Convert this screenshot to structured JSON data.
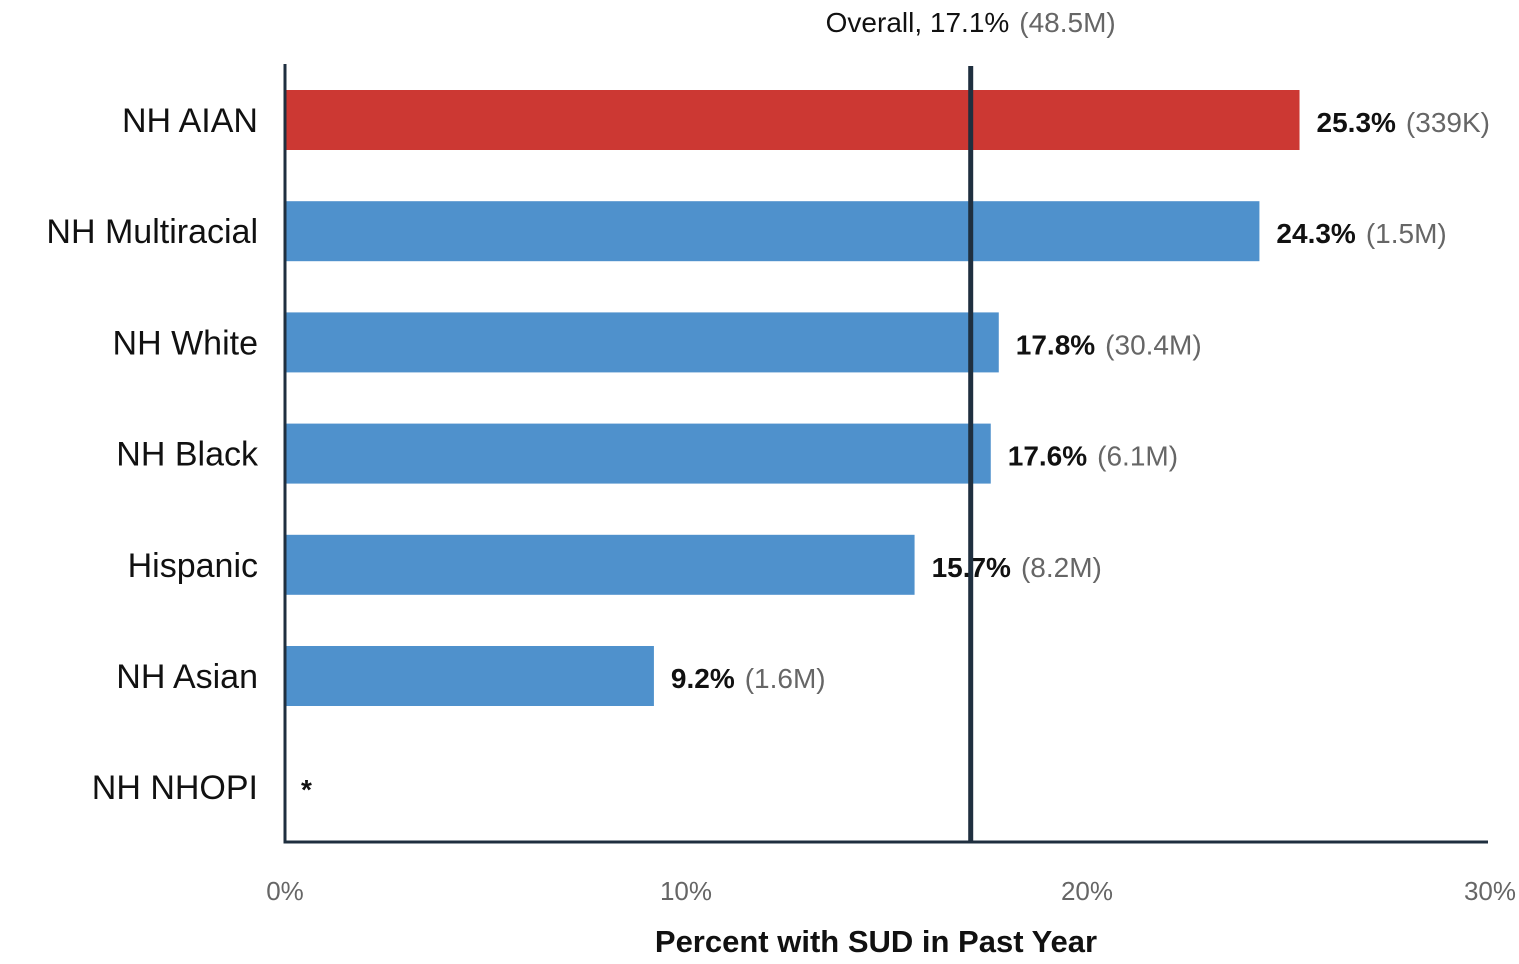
{
  "chart_data": {
    "type": "bar",
    "orientation": "horizontal",
    "categories": [
      "NH AIAN",
      "NH Multiracial",
      "NH White",
      "NH Black",
      "Hispanic",
      "NH Asian",
      "NH NHOPI"
    ],
    "values": [
      25.3,
      24.3,
      17.8,
      17.6,
      15.7,
      9.2,
      null
    ],
    "value_labels": [
      "25.3%",
      "24.3%",
      "17.8%",
      "17.6%",
      "15.7%",
      "9.2%",
      "*"
    ],
    "count_labels": [
      "(339K)",
      "(1.5M)",
      "(30.4M)",
      "(6.1M)",
      "(8.2M)",
      "(1.6M)",
      ""
    ],
    "highlight_index": 0,
    "xlabel": "Percent with SUD in Past Year",
    "ylabel": "",
    "xlim": [
      0,
      30
    ],
    "xticks": [
      0,
      10,
      20,
      30
    ],
    "xtick_labels": [
      "0%",
      "10%",
      "20%",
      "30%"
    ],
    "grid": false,
    "reference_line": {
      "value": 17.1,
      "label": "Overall, 17.1%",
      "count_label": "(48.5M)"
    },
    "colors": {
      "bar": "#4f91cc",
      "highlight": "#cc3833",
      "reference_line": "#1f2f3f",
      "axis": "#1f2f3f"
    }
  }
}
